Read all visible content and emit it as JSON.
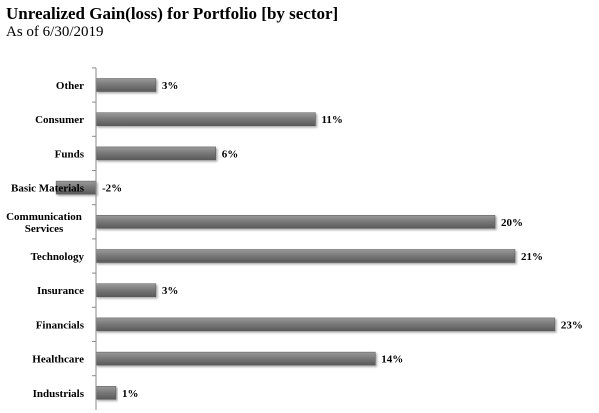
{
  "chart_data": {
    "type": "bar",
    "orientation": "horizontal",
    "title": "Unrealized Gain(loss) for Portfolio [by sector]",
    "subtitle": "As of 6/30/2019",
    "categories": [
      "Other",
      "Consumer",
      "Funds",
      "Basic Materials",
      "Communication Services",
      "Technology",
      "Insurance",
      "Financials",
      "Healthcare",
      "Industrials"
    ],
    "category_display": [
      [
        "Other"
      ],
      [
        "Consumer"
      ],
      [
        "Funds"
      ],
      [
        "Basic Materials"
      ],
      [
        "Communication",
        "Services"
      ],
      [
        "Technology"
      ],
      [
        "Insurance"
      ],
      [
        "Financials"
      ],
      [
        "Healthcare"
      ],
      [
        "Industrials"
      ]
    ],
    "values": [
      3,
      11,
      6,
      -2,
      20,
      21,
      3,
      23,
      14,
      1
    ],
    "data_labels": [
      "3%",
      "11%",
      "6%",
      "-2%",
      "20%",
      "21%",
      "3%",
      "23%",
      "14%",
      "1%"
    ],
    "unit": "%",
    "bar_color": "#7a7a7a",
    "grid": false,
    "legend": "none"
  }
}
